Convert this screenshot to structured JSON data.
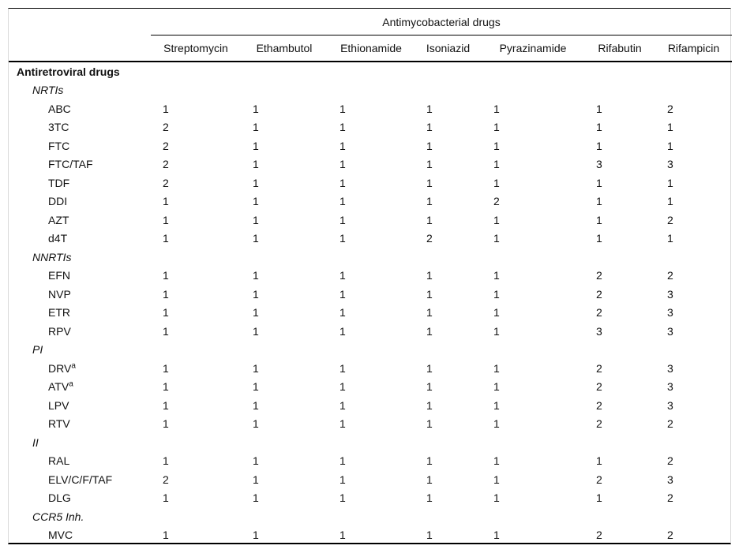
{
  "page": {
    "background_color": "#ffffff",
    "frame_color": "#d9d9d9",
    "rule_color": "#000000",
    "text_color": "#111111"
  },
  "table": {
    "spanner": "Antimycobacterial drugs",
    "columns": [
      "Streptomycin",
      "Ethambutol",
      "Ethionamide",
      "Isoniazid",
      "Pyrazinamide",
      "Rifabutin",
      "Rifampicin"
    ],
    "group_header": "Antiretroviral drugs",
    "sections": [
      {
        "label": "NRTIs",
        "rows": [
          {
            "drug": "ABC",
            "sup": "",
            "values": [
              "1",
              "1",
              "1",
              "1",
              "1",
              "1",
              "2"
            ]
          },
          {
            "drug": "3TC",
            "sup": "",
            "values": [
              "2",
              "1",
              "1",
              "1",
              "1",
              "1",
              "1"
            ]
          },
          {
            "drug": "FTC",
            "sup": "",
            "values": [
              "2",
              "1",
              "1",
              "1",
              "1",
              "1",
              "1"
            ]
          },
          {
            "drug": "FTC/TAF",
            "sup": "",
            "values": [
              "2",
              "1",
              "1",
              "1",
              "1",
              "3",
              "3"
            ]
          },
          {
            "drug": "TDF",
            "sup": "",
            "values": [
              "2",
              "1",
              "1",
              "1",
              "1",
              "1",
              "1"
            ]
          },
          {
            "drug": "DDI",
            "sup": "",
            "values": [
              "1",
              "1",
              "1",
              "1",
              "2",
              "1",
              "1"
            ]
          },
          {
            "drug": "AZT",
            "sup": "",
            "values": [
              "1",
              "1",
              "1",
              "1",
              "1",
              "1",
              "2"
            ]
          },
          {
            "drug": "d4T",
            "sup": "",
            "values": [
              "1",
              "1",
              "1",
              "2",
              "1",
              "1",
              "1"
            ]
          }
        ]
      },
      {
        "label": "NNRTIs",
        "rows": [
          {
            "drug": "EFN",
            "sup": "",
            "values": [
              "1",
              "1",
              "1",
              "1",
              "1",
              "2",
              "2"
            ]
          },
          {
            "drug": "NVP",
            "sup": "",
            "values": [
              "1",
              "1",
              "1",
              "1",
              "1",
              "2",
              "3"
            ]
          },
          {
            "drug": "ETR",
            "sup": "",
            "values": [
              "1",
              "1",
              "1",
              "1",
              "1",
              "2",
              "3"
            ]
          },
          {
            "drug": "RPV",
            "sup": "",
            "values": [
              "1",
              "1",
              "1",
              "1",
              "1",
              "3",
              "3"
            ]
          }
        ]
      },
      {
        "label": "PI",
        "rows": [
          {
            "drug": "DRV",
            "sup": "a",
            "values": [
              "1",
              "1",
              "1",
              "1",
              "1",
              "2",
              "3"
            ]
          },
          {
            "drug": "ATV",
            "sup": "a",
            "values": [
              "1",
              "1",
              "1",
              "1",
              "1",
              "2",
              "3"
            ]
          },
          {
            "drug": "LPV",
            "sup": "",
            "values": [
              "1",
              "1",
              "1",
              "1",
              "1",
              "2",
              "3"
            ]
          },
          {
            "drug": "RTV",
            "sup": "",
            "values": [
              "1",
              "1",
              "1",
              "1",
              "1",
              "2",
              "2"
            ]
          }
        ]
      },
      {
        "label": "II",
        "rows": [
          {
            "drug": "RAL",
            "sup": "",
            "values": [
              "1",
              "1",
              "1",
              "1",
              "1",
              "1",
              "2"
            ]
          },
          {
            "drug": "ELV/C/F/TAF",
            "sup": "",
            "values": [
              "2",
              "1",
              "1",
              "1",
              "1",
              "2",
              "3"
            ]
          },
          {
            "drug": "DLG",
            "sup": "",
            "values": [
              "1",
              "1",
              "1",
              "1",
              "1",
              "1",
              "2"
            ]
          }
        ]
      },
      {
        "label": "CCR5 Inh.",
        "rows": [
          {
            "drug": "MVC",
            "sup": "",
            "values": [
              "1",
              "1",
              "1",
              "1",
              "1",
              "2",
              "2"
            ]
          }
        ]
      }
    ]
  }
}
